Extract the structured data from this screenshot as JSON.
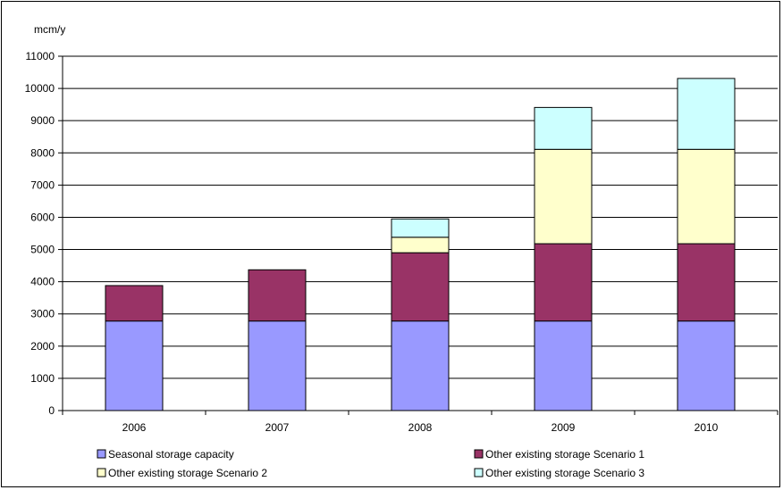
{
  "chart_data": {
    "type": "bar",
    "stacked": true,
    "title": "",
    "xlabel": "",
    "ylabel": "mcm/y",
    "ylim": [
      0,
      11000
    ],
    "y_ticks": [
      0,
      1000,
      2000,
      3000,
      4000,
      5000,
      6000,
      7000,
      8000,
      9000,
      10000,
      11000
    ],
    "grid": "horizontal",
    "legend_position": "bottom",
    "categories": [
      "2006",
      "2007",
      "2008",
      "2009",
      "2010"
    ],
    "series": [
      {
        "name": "Seasonal storage capacity",
        "color": "#9999ff",
        "values": [
          2780,
          2780,
          2780,
          2780,
          2780
        ]
      },
      {
        "name": "Other existing storage Scenario 1",
        "color": "#993366",
        "values": [
          1100,
          1590,
          2120,
          2400,
          2400
        ]
      },
      {
        "name": "Other existing storage Scenario 2",
        "color": "#ffffcc",
        "values": [
          0,
          0,
          480,
          2930,
          2930
        ]
      },
      {
        "name": "Other existing storage Scenario 3",
        "color": "#ccffff",
        "values": [
          0,
          0,
          570,
          1300,
          2200
        ]
      }
    ]
  }
}
